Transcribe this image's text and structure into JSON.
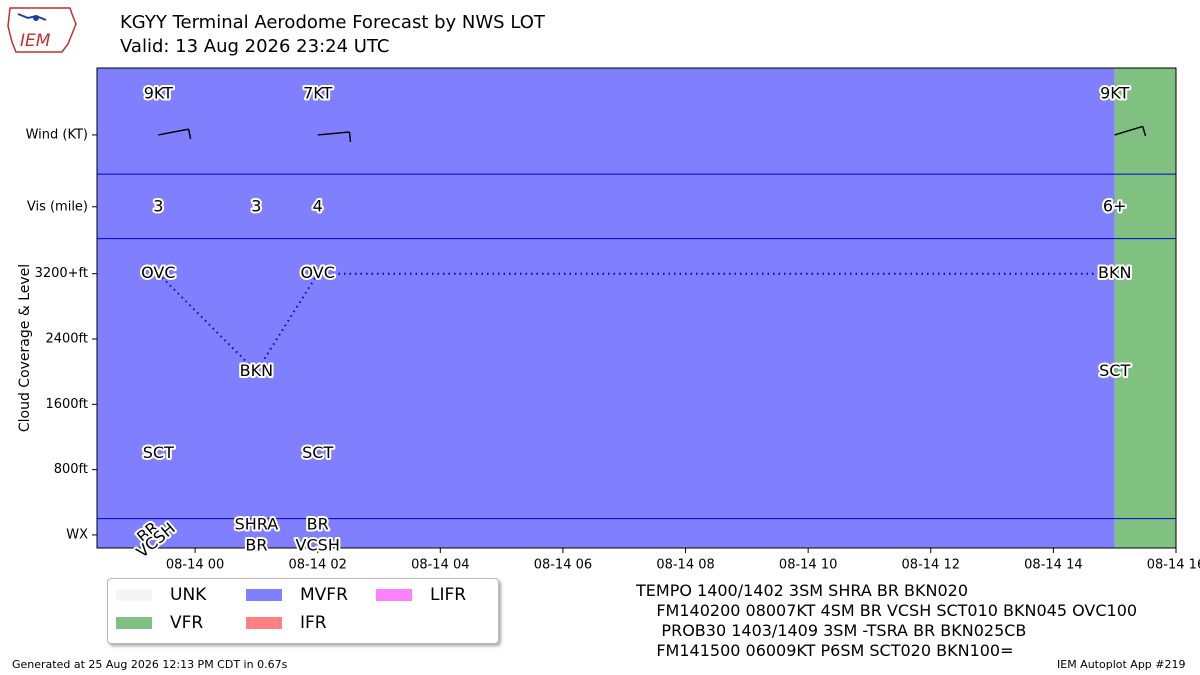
{
  "header": {
    "logo_text": "IEM",
    "title": "KGYY Terminal Aerodome Forecast by NWS LOT",
    "subtitle": "Valid: 13 Aug 2026 23:24 UTC"
  },
  "chart_data": {
    "type": "timeline",
    "time_axis": {
      "ticks": [
        "08-14 00",
        "08-14 02",
        "08-14 04",
        "08-14 06",
        "08-14 08",
        "08-14 10",
        "08-14 12",
        "08-14 14",
        "08-14 16"
      ],
      "tick_hours": [
        0,
        2,
        4,
        6,
        8,
        10,
        12,
        14,
        16
      ],
      "range_hours": [
        -1.6,
        16
      ]
    },
    "y_axis": {
      "label": "Cloud Coverage & Level",
      "ticks": [
        {
          "label": "Wind (KT)",
          "v": 4900
        },
        {
          "label": "Vis (mile)",
          "v": 4020
        },
        {
          "label": "3200+ft",
          "v": 3200
        },
        {
          "label": "2400ft",
          "v": 2400
        },
        {
          "label": "1600ft",
          "v": 1600
        },
        {
          "label": "800ft",
          "v": 800
        },
        {
          "label": "WX",
          "v": 0
        }
      ],
      "range": [
        -160,
        5720
      ],
      "dividers": [
        200,
        3630,
        4420
      ]
    },
    "categories": [
      {
        "start": -1.6,
        "end": 15,
        "cat": "MVFR"
      },
      {
        "start": 15,
        "end": 16,
        "cat": "VFR"
      }
    ],
    "category_colors": {
      "UNK": "#f5f5f5",
      "VFR": "#80c080",
      "MVFR": "#8080ff",
      "IFR": "#ff8080",
      "LIFR": "#ff80ff"
    },
    "forecasts": [
      {
        "t": -0.6,
        "wind": "9KT",
        "wind_dir": 70,
        "vis": "3",
        "clouds": [
          {
            "cov": "OVC",
            "v": 3200
          },
          {
            "cov": "SCT",
            "v": 1000
          }
        ],
        "wx": [
          "BR",
          "VCSH"
        ],
        "wx_style": "rotated"
      },
      {
        "t": 1.0,
        "vis": "3",
        "clouds": [
          {
            "cov": "BKN",
            "v": 2000
          }
        ],
        "wx": [
          "SHRA",
          "BR"
        ]
      },
      {
        "t": 2.0,
        "wind": "7KT",
        "wind_dir": 80,
        "vis": "4",
        "clouds": [
          {
            "cov": "OVC",
            "v": 3200
          },
          {
            "cov": "SCT",
            "v": 1000
          }
        ],
        "wx": [
          "BR",
          "VCSH"
        ]
      },
      {
        "t": 15.0,
        "wind": "9KT",
        "wind_dir": 60,
        "vis": "6+",
        "clouds": [
          {
            "cov": "BKN",
            "v": 3200
          },
          {
            "cov": "SCT",
            "v": 2000
          }
        ],
        "wx": []
      }
    ],
    "ceiling_path": [
      [
        -0.6,
        3200
      ],
      [
        1.0,
        2000
      ],
      [
        2.0,
        3200
      ],
      [
        15.0,
        3200
      ]
    ],
    "legend": [
      "UNK",
      "VFR",
      "MVFR",
      "IFR",
      "LIFR"
    ]
  },
  "taf_text": [
    "TEMPO 1400/1402 3SM SHRA BR BKN020",
    "    FM140200 08007KT 4SM BR VCSH SCT010 BKN045 OVC100",
    "     PROB30 1403/1409 3SM -TSRA BR BKN025CB",
    "    FM141500 06009KT P6SM SCT020 BKN100="
  ],
  "footer": {
    "left": "Generated at 25 Aug 2026 12:13 PM CDT in 0.67s",
    "right": "IEM Autoplot App #219"
  }
}
